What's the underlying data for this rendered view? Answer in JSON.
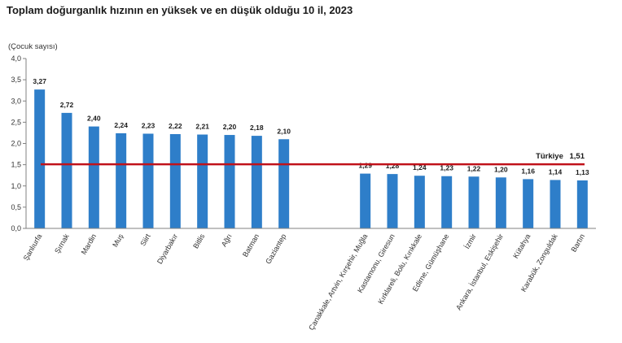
{
  "chart_data": {
    "type": "bar",
    "title": "Toplam doğurganlık hızının en yüksek ve en düşük olduğu 10 il, 2023",
    "ylabel": "(Çocuk sayısı)",
    "ylim": [
      0,
      4.0
    ],
    "yticks": [
      "0,0",
      "0,5",
      "1,0",
      "1,5",
      "2,0",
      "2,5",
      "3,0",
      "3,5",
      "4,0"
    ],
    "grid": false,
    "bar_color": "#2e7ec9",
    "reference_line": {
      "label": "Türkiye",
      "value": 1.51,
      "value_label": "1,51",
      "color": "#c0121a"
    },
    "categories": [
      "Şanlıurfa",
      "Şırnak",
      "Mardin",
      "Muş",
      "Siirt",
      "Diyarbakır",
      "Bitlis",
      "Ağrı",
      "Batman",
      "Gaziantep",
      "",
      "",
      "Çanakkale, Artvin, Kırşehir, Muğla",
      "Kastamonu, Giresun",
      "Kırklareli, Bolu, Kırıkkale",
      "Edirne, Gümüşhane",
      "İzmir",
      "Ankara, İstanbul, Eskişehir",
      "Kütahya",
      "Karabük, Zonguldak",
      "Bartın"
    ],
    "values": [
      3.27,
      2.72,
      2.4,
      2.24,
      2.23,
      2.22,
      2.21,
      2.2,
      2.18,
      2.1,
      null,
      null,
      1.29,
      1.28,
      1.24,
      1.23,
      1.22,
      1.2,
      1.16,
      1.14,
      1.13
    ],
    "value_labels": [
      "3,27",
      "2,72",
      "2,40",
      "2,24",
      "2,23",
      "2,22",
      "2,21",
      "2,20",
      "2,18",
      "2,10",
      "",
      "",
      "1,29",
      "1,28",
      "1,24",
      "1,23",
      "1,22",
      "1,20",
      "1,16",
      "1,14",
      "1,13"
    ]
  }
}
